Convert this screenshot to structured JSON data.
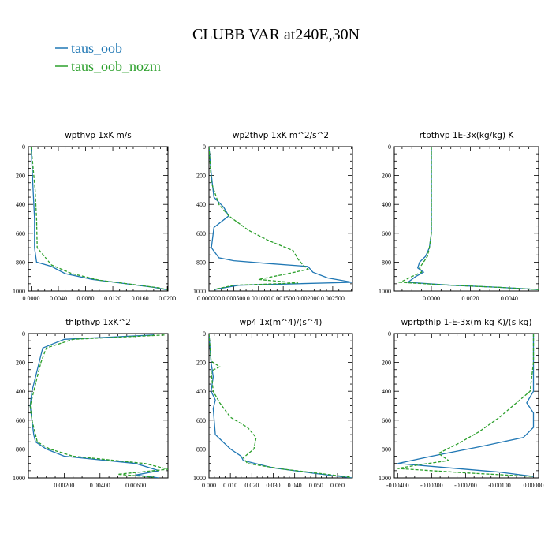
{
  "figure": {
    "title": "CLUBB VAR at240E,30N",
    "legend": [
      {
        "label": "taus_oob",
        "color": "#1f77b4"
      },
      {
        "label": "taus_oob_nozm",
        "color": "#2ca02c"
      }
    ]
  },
  "chart_data": [
    {
      "type": "line",
      "title": "wpthvp   1xK m/s",
      "xlim": [
        -0.0004,
        0.0201
      ],
      "ylim": [
        0,
        1000
      ],
      "x_ticks": [
        0.0,
        0.004,
        0.008,
        0.012,
        0.016,
        0.02
      ],
      "x_tick_labels": [
        "0.0000",
        "0.0040",
        "0.0080",
        "0.0120",
        "0.0160",
        "0.0200"
      ],
      "y_ticks": [
        0,
        200,
        400,
        600,
        800,
        1000
      ],
      "y_tick_labels": [
        "0",
        "200",
        "400",
        "600",
        "800",
        "1000"
      ],
      "series": [
        {
          "name": "taus_oob",
          "color": "#1f77b4",
          "dash": "",
          "x": [
            0.0,
            0.0001,
            0.0002,
            0.0003,
            0.0004,
            0.0005,
            0.0005,
            0.0008,
            0.003,
            0.005,
            0.009,
            0.014,
            0.018,
            0.0198
          ],
          "y": [
            0,
            100,
            200,
            300,
            400,
            500,
            700,
            800,
            830,
            880,
            920,
            950,
            975,
            990
          ]
        },
        {
          "name": "taus_oob_nozm",
          "color": "#2ca02c",
          "dash": "4,2",
          "x": [
            0.0,
            0.0002,
            0.0004,
            0.0006,
            0.0007,
            0.0008,
            0.0009,
            0.003,
            0.006,
            0.01,
            0.015,
            0.019,
            0.02
          ],
          "y": [
            0,
            100,
            200,
            300,
            400,
            500,
            700,
            820,
            880,
            925,
            955,
            980,
            992
          ]
        }
      ]
    },
    {
      "type": "line",
      "title": "wp2thvp   1xK m^2/s^2",
      "xlim": [
        0,
        0.0029
      ],
      "ylim": [
        0,
        1000
      ],
      "x_ticks": [
        0.0,
        0.0005,
        0.001,
        0.0015,
        0.002,
        0.0025
      ],
      "x_tick_labels": [
        "0.000000",
        "0.000500",
        "0.001000",
        "0.001500",
        "0.002000",
        "0.002500"
      ],
      "y_ticks": [
        0,
        200,
        400,
        600,
        800,
        1000
      ],
      "y_tick_labels": [
        "0",
        "200",
        "400",
        "600",
        "800",
        "1000"
      ],
      "series": [
        {
          "name": "taus_oob",
          "color": "#1f77b4",
          "dash": "",
          "x": [
            0.0,
            5e-05,
            0.0001,
            0.0003,
            0.0004,
            0.0001,
            5e-05,
            0.0002,
            0.0005,
            0.0012,
            0.002,
            0.0021,
            0.0024,
            0.0029,
            0.0006,
            0.0001
          ],
          "y": [
            0,
            200,
            350,
            420,
            480,
            560,
            700,
            770,
            790,
            810,
            830,
            870,
            910,
            940,
            960,
            990
          ]
        },
        {
          "name": "taus_oob_nozm",
          "color": "#2ca02c",
          "dash": "4,2",
          "x": [
            0.0,
            5e-05,
            0.0002,
            0.0004,
            0.0008,
            0.0012,
            0.0017,
            0.0018,
            0.0019,
            0.002,
            0.0016,
            0.001,
            0.0018,
            0.0005,
            0.0001
          ],
          "y": [
            0,
            250,
            400,
            480,
            580,
            650,
            720,
            780,
            820,
            850,
            880,
            920,
            945,
            960,
            990
          ]
        }
      ]
    },
    {
      "type": "line",
      "title": "rtpthvp   1E-3x(kg/kg) K",
      "xlim": [
        -0.0019,
        0.0055
      ],
      "ylim": [
        0,
        1000
      ],
      "x_ticks": [
        0.0,
        0.002,
        0.004
      ],
      "x_tick_labels": [
        "0.0000",
        "0.0020",
        "0.0040"
      ],
      "y_ticks": [
        0,
        200,
        400,
        600,
        800,
        1000
      ],
      "y_tick_labels": [
        "0",
        "200",
        "400",
        "600",
        "800",
        "1000"
      ],
      "series": [
        {
          "name": "taus_oob",
          "color": "#1f77b4",
          "dash": "",
          "x": [
            0.0,
            0.0,
            0.0,
            0.0,
            -0.0001,
            -0.0003,
            -0.0006,
            -0.0007,
            -0.0004,
            -0.0008,
            -0.0012,
            0.001,
            0.0035,
            0.0055
          ],
          "y": [
            0,
            200,
            400,
            600,
            700,
            760,
            800,
            840,
            870,
            900,
            940,
            960,
            975,
            990
          ]
        },
        {
          "name": "taus_oob_nozm",
          "color": "#2ca02c",
          "dash": "4,2",
          "x": [
            0.0,
            0.0,
            0.0,
            0.0,
            -0.0001,
            -0.0002,
            -0.0004,
            -0.0006,
            -0.0005,
            -0.001,
            -0.0016,
            0.001,
            0.0035,
            0.0055
          ],
          "y": [
            0,
            200,
            400,
            600,
            700,
            760,
            800,
            840,
            870,
            900,
            940,
            960,
            975,
            990
          ]
        }
      ]
    },
    {
      "type": "line",
      "title": "thlpthvp   1xK^2",
      "xlim": [
        0,
        0.0078
      ],
      "ylim": [
        0,
        1000
      ],
      "x_ticks": [
        0.002,
        0.004,
        0.006
      ],
      "x_tick_labels": [
        "0.00200",
        "0.00400",
        "0.00600"
      ],
      "y_ticks": [
        0,
        200,
        400,
        600,
        800,
        1000
      ],
      "y_tick_labels": [
        "0",
        "200",
        "400",
        "600",
        "800",
        "1000"
      ],
      "series": [
        {
          "name": "taus_oob",
          "color": "#1f77b4",
          "dash": "",
          "x": [
            0.007,
            0.002,
            0.0008,
            0.0006,
            0.0004,
            0.0002,
            0.0001,
            0.0002,
            0.0003,
            0.0004,
            0.001,
            0.002,
            0.006,
            0.0073,
            0.006,
            0.0073
          ],
          "y": [
            10,
            40,
            100,
            200,
            300,
            400,
            500,
            600,
            700,
            750,
            800,
            850,
            900,
            950,
            980,
            1000
          ]
        },
        {
          "name": "taus_oob_nozm",
          "color": "#2ca02c",
          "dash": "4,2",
          "x": [
            0.0076,
            0.0025,
            0.001,
            0.0007,
            0.0005,
            0.0003,
            0.0001,
            0.0002,
            0.0004,
            0.0005,
            0.0012,
            0.0025,
            0.0065,
            0.0078,
            0.005,
            0.007
          ],
          "y": [
            10,
            40,
            100,
            200,
            300,
            400,
            500,
            600,
            700,
            750,
            800,
            850,
            900,
            940,
            975,
            995
          ]
        }
      ]
    },
    {
      "type": "line",
      "title": "wp4   1x(m^4)/(s^4)",
      "xlim": [
        0,
        0.067
      ],
      "ylim": [
        0,
        1000
      ],
      "x_ticks": [
        0.0,
        0.01,
        0.02,
        0.03,
        0.04,
        0.05,
        0.06
      ],
      "x_tick_labels": [
        "0.000",
        "0.010",
        "0.020",
        "0.030",
        "0.040",
        "0.050",
        "0.060"
      ],
      "y_ticks": [
        0,
        200,
        400,
        600,
        800,
        1000
      ],
      "y_tick_labels": [
        "0",
        "200",
        "400",
        "600",
        "800",
        "1000"
      ],
      "series": [
        {
          "name": "taus_oob",
          "color": "#1f77b4",
          "dash": "",
          "x": [
            0.0,
            0.001,
            0.002,
            0.001,
            0.003,
            0.002,
            0.003,
            0.01,
            0.015,
            0.016,
            0.03,
            0.05,
            0.067
          ],
          "y": [
            0,
            200,
            300,
            400,
            460,
            520,
            700,
            800,
            850,
            880,
            930,
            970,
            1000
          ]
        },
        {
          "name": "taus_oob_nozm",
          "color": "#2ca02c",
          "dash": "4,2",
          "x": [
            0.0,
            0.001,
            0.005,
            0.001,
            0.002,
            0.005,
            0.01,
            0.018,
            0.022,
            0.021,
            0.016,
            0.018,
            0.035,
            0.055,
            0.067
          ],
          "y": [
            0,
            190,
            230,
            260,
            400,
            480,
            580,
            650,
            720,
            800,
            860,
            900,
            940,
            975,
            998
          ]
        }
      ]
    },
    {
      "type": "line",
      "title": "wprtpthlp   1-E-3x(m kg K)/(s kg)",
      "xlim": [
        -0.0041,
        0.00015
      ],
      "ylim": [
        0,
        1000
      ],
      "x_ticks": [
        -0.004,
        -0.003,
        -0.002,
        -0.001,
        0.0
      ],
      "x_tick_labels": [
        "-0.00400",
        "-0.00300",
        "-0.00200",
        "-0.00100",
        "0.00000"
      ],
      "y_ticks": [
        0,
        200,
        400,
        600,
        800,
        1000
      ],
      "y_tick_labels": [
        "0",
        "200",
        "400",
        "600",
        "800",
        "1000"
      ],
      "series": [
        {
          "name": "taus_oob",
          "color": "#1f77b4",
          "dash": "",
          "x": [
            0.0,
            0.0,
            0.0,
            -0.0001,
            -0.0002,
            0.0,
            0.0,
            -0.0003,
            -0.0015,
            -0.003,
            -0.004,
            -0.0025,
            -0.001,
            0.0
          ],
          "y": [
            0,
            200,
            400,
            440,
            480,
            550,
            650,
            720,
            780,
            850,
            900,
            930,
            960,
            990
          ]
        },
        {
          "name": "taus_oob_nozm",
          "color": "#2ca02c",
          "dash": "4,2",
          "x": [
            0.0,
            0.0,
            -0.0001,
            -0.0005,
            -0.001,
            -0.0016,
            -0.0022,
            -0.0028,
            -0.0025,
            -0.0034,
            -0.004,
            -0.002,
            0.0
          ],
          "y": [
            0,
            200,
            400,
            480,
            580,
            680,
            760,
            830,
            880,
            910,
            935,
            965,
            990
          ]
        }
      ]
    }
  ]
}
